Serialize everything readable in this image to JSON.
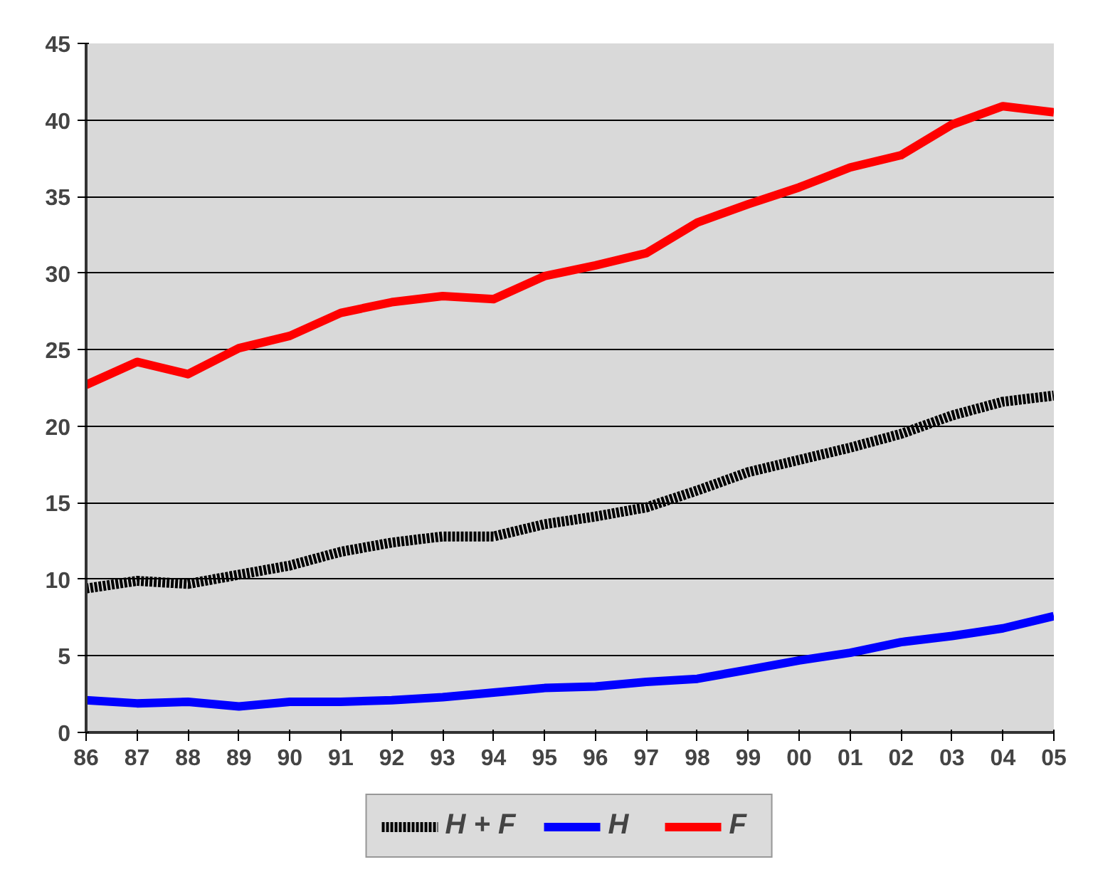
{
  "chart_data": {
    "type": "line",
    "categories": [
      "86",
      "87",
      "88",
      "89",
      "90",
      "91",
      "92",
      "93",
      "94",
      "95",
      "96",
      "97",
      "98",
      "99",
      "00",
      "01",
      "02",
      "03",
      "04",
      "05"
    ],
    "series": [
      {
        "name": "H + F",
        "color": "#000000",
        "line_style": "dotted",
        "values": [
          9.4,
          9.9,
          9.7,
          10.3,
          10.9,
          11.8,
          12.4,
          12.8,
          12.8,
          13.6,
          14.1,
          14.7,
          15.8,
          17.0,
          17.8,
          18.6,
          19.5,
          20.7,
          21.6,
          22.0
        ]
      },
      {
        "name": "H",
        "color": "#0000ff",
        "values": [
          2.1,
          1.9,
          2.0,
          1.7,
          2.0,
          2.0,
          2.1,
          2.3,
          2.6,
          2.9,
          3.0,
          3.3,
          3.5,
          4.1,
          4.7,
          5.2,
          5.9,
          6.3,
          6.8,
          7.6
        ]
      },
      {
        "name": "F",
        "color": "#ff0000",
        "values": [
          22.7,
          24.2,
          23.4,
          25.1,
          25.9,
          27.4,
          28.1,
          28.5,
          28.3,
          29.8,
          30.5,
          31.3,
          33.3,
          34.5,
          35.6,
          36.9,
          37.7,
          39.7,
          40.9,
          40.5
        ]
      }
    ],
    "ylim": [
      0,
      45
    ],
    "yticks": [
      0,
      5,
      10,
      15,
      20,
      25,
      30,
      35,
      40,
      45
    ],
    "grid": "y",
    "legend": "bottom",
    "line_style": "solid",
    "marker": "none"
  }
}
